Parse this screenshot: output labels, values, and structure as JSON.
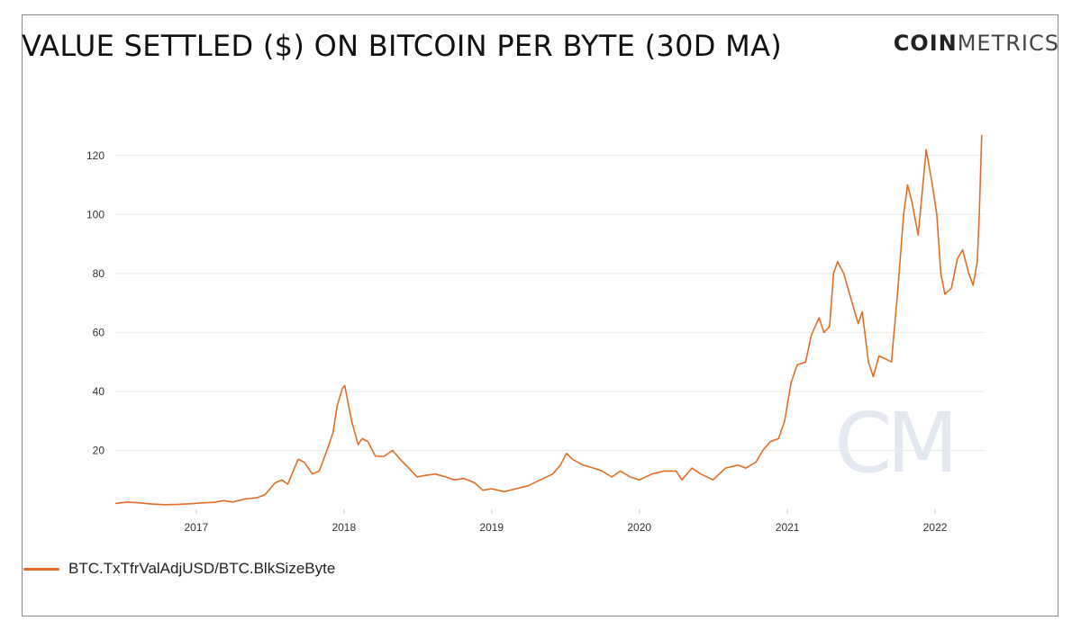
{
  "title": "VALUE SETTLED ($) ON BITCOIN PER BYTE (30D MA)",
  "brand": {
    "bold": "COIN",
    "light": "METRICS"
  },
  "watermark": "CM",
  "colors": {
    "series": "#e36d25",
    "grid": "#e9e9e9",
    "text": "#333333"
  },
  "chart_data": {
    "type": "line",
    "xlabel": "",
    "ylabel": "",
    "xlim": [
      "2016-06-15",
      "2022-05-01"
    ],
    "ylim": [
      0,
      130
    ],
    "yticks": [
      20,
      40,
      60,
      80,
      100,
      120
    ],
    "xticks": [
      {
        "date": "2017-01-01",
        "label": "2017"
      },
      {
        "date": "2018-01-01",
        "label": "2018"
      },
      {
        "date": "2019-01-01",
        "label": "2019"
      },
      {
        "date": "2020-01-01",
        "label": "2020"
      },
      {
        "date": "2021-01-01",
        "label": "2021"
      },
      {
        "date": "2022-01-01",
        "label": "2022"
      }
    ],
    "grid": true,
    "legend_position": "bottom-left",
    "series": [
      {
        "name": "BTC.TxTfrValAdjUSD/BTC.BlkSizeByte",
        "color": "#e36d25",
        "points": [
          [
            "2016-06-15",
            2
          ],
          [
            "2016-07-15",
            2.5
          ],
          [
            "2016-08-15",
            2.2
          ],
          [
            "2016-09-15",
            1.8
          ],
          [
            "2016-10-15",
            1.6
          ],
          [
            "2016-11-15",
            1.7
          ],
          [
            "2016-12-15",
            1.9
          ],
          [
            "2017-01-15",
            2.2
          ],
          [
            "2017-02-15",
            2.4
          ],
          [
            "2017-03-10",
            3
          ],
          [
            "2017-04-01",
            2.5
          ],
          [
            "2017-05-01",
            3.5
          ],
          [
            "2017-06-01",
            4
          ],
          [
            "2017-06-20",
            5
          ],
          [
            "2017-07-15",
            9
          ],
          [
            "2017-08-01",
            10
          ],
          [
            "2017-08-15",
            8.5
          ],
          [
            "2017-09-10",
            17
          ],
          [
            "2017-09-25",
            16
          ],
          [
            "2017-10-15",
            12
          ],
          [
            "2017-11-01",
            13
          ],
          [
            "2017-11-20",
            20
          ],
          [
            "2017-12-05",
            26
          ],
          [
            "2017-12-15",
            35
          ],
          [
            "2017-12-28",
            41
          ],
          [
            "2018-01-03",
            42
          ],
          [
            "2018-01-20",
            30
          ],
          [
            "2018-02-05",
            22
          ],
          [
            "2018-02-15",
            24
          ],
          [
            "2018-03-01",
            23
          ],
          [
            "2018-03-20",
            18
          ],
          [
            "2018-04-10",
            18
          ],
          [
            "2018-05-01",
            20
          ],
          [
            "2018-05-20",
            17
          ],
          [
            "2018-06-10",
            14
          ],
          [
            "2018-07-01",
            11
          ],
          [
            "2018-07-20",
            11.5
          ],
          [
            "2018-08-15",
            12
          ],
          [
            "2018-09-10",
            11
          ],
          [
            "2018-10-01",
            10
          ],
          [
            "2018-10-25",
            10.5
          ],
          [
            "2018-11-20",
            9
          ],
          [
            "2018-12-10",
            6.5
          ],
          [
            "2019-01-01",
            7
          ],
          [
            "2019-02-01",
            6
          ],
          [
            "2019-03-01",
            7
          ],
          [
            "2019-04-01",
            8
          ],
          [
            "2019-05-01",
            10
          ],
          [
            "2019-06-01",
            12
          ],
          [
            "2019-06-20",
            15
          ],
          [
            "2019-07-05",
            19
          ],
          [
            "2019-07-20",
            17
          ],
          [
            "2019-08-15",
            15
          ],
          [
            "2019-09-10",
            14
          ],
          [
            "2019-10-01",
            13
          ],
          [
            "2019-10-25",
            11
          ],
          [
            "2019-11-15",
            13
          ],
          [
            "2019-12-10",
            11
          ],
          [
            "2020-01-01",
            10
          ],
          [
            "2020-02-01",
            12
          ],
          [
            "2020-03-01",
            13
          ],
          [
            "2020-03-15",
            13
          ],
          [
            "2020-04-01",
            13
          ],
          [
            "2020-04-15",
            10
          ],
          [
            "2020-05-10",
            14
          ],
          [
            "2020-06-01",
            12
          ],
          [
            "2020-07-01",
            10
          ],
          [
            "2020-08-01",
            14
          ],
          [
            "2020-09-01",
            15
          ],
          [
            "2020-09-20",
            14
          ],
          [
            "2020-10-15",
            16
          ],
          [
            "2020-11-01",
            20
          ],
          [
            "2020-11-20",
            23
          ],
          [
            "2020-12-10",
            24
          ],
          [
            "2020-12-25",
            30
          ],
          [
            "2021-01-10",
            43
          ],
          [
            "2021-01-25",
            49
          ],
          [
            "2021-02-15",
            50
          ],
          [
            "2021-03-01",
            59
          ],
          [
            "2021-03-20",
            65
          ],
          [
            "2021-04-01",
            60
          ],
          [
            "2021-04-15",
            62
          ],
          [
            "2021-04-25",
            80
          ],
          [
            "2021-05-05",
            84
          ],
          [
            "2021-05-20",
            80
          ],
          [
            "2021-06-10",
            70
          ],
          [
            "2021-06-25",
            63
          ],
          [
            "2021-07-05",
            67
          ],
          [
            "2021-07-20",
            50
          ],
          [
            "2021-08-01",
            45
          ],
          [
            "2021-08-15",
            52
          ],
          [
            "2021-09-01",
            51
          ],
          [
            "2021-09-15",
            50
          ],
          [
            "2021-10-01",
            75
          ],
          [
            "2021-10-15",
            100
          ],
          [
            "2021-10-25",
            110
          ],
          [
            "2021-11-05",
            104
          ],
          [
            "2021-11-20",
            93
          ],
          [
            "2021-12-10",
            122
          ],
          [
            "2021-12-25",
            110
          ],
          [
            "2022-01-05",
            100
          ],
          [
            "2022-01-15",
            80
          ],
          [
            "2022-01-25",
            73
          ],
          [
            "2022-02-10",
            75
          ],
          [
            "2022-02-25",
            85
          ],
          [
            "2022-03-10",
            88
          ],
          [
            "2022-03-25",
            80
          ],
          [
            "2022-04-05",
            76
          ],
          [
            "2022-04-15",
            84
          ],
          [
            "2022-04-20",
            100
          ],
          [
            "2022-04-26",
            127
          ]
        ]
      }
    ]
  }
}
